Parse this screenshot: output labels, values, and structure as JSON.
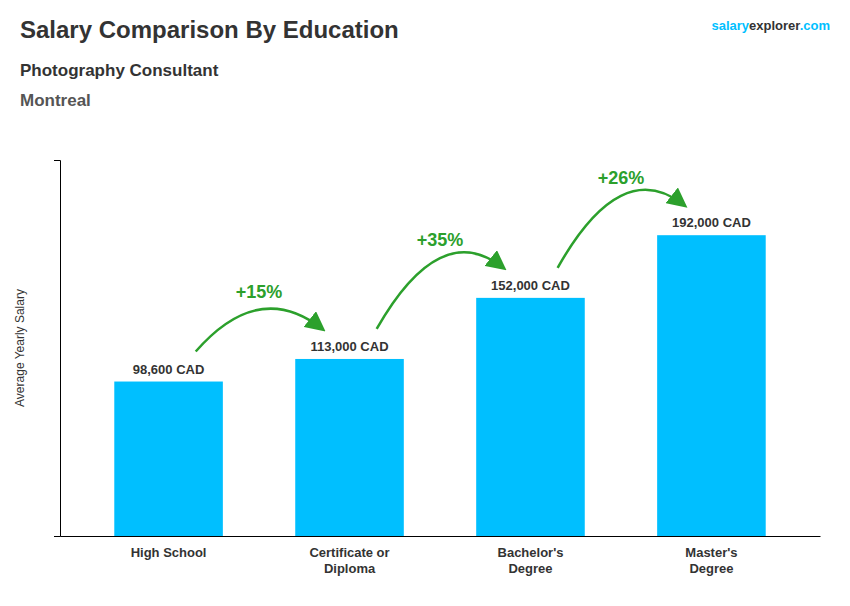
{
  "chart_data": {
    "type": "bar",
    "title": "Salary Comparison By Education",
    "subtitle": [
      "Photography Consultant",
      "Montreal"
    ],
    "source": [
      "salary",
      "explorer",
      ".com"
    ],
    "ylabel": "Average Yearly Salary",
    "categories": [
      "High School",
      "Certificate or\nDiploma",
      "Bachelor's\nDegree",
      "Master's\nDegree"
    ],
    "values": [
      98600,
      113000,
      152000,
      192000
    ],
    "value_labels": [
      "98,600 CAD",
      "113,000 CAD",
      "152,000 CAD",
      "192,000 CAD"
    ],
    "data_labels": true,
    "annotations": [
      "+15%",
      "+35%",
      "+26%"
    ],
    "color": "#00BFFF",
    "ylim": [
      0,
      240000
    ],
    "tick_labels": "x",
    "grid": false
  }
}
